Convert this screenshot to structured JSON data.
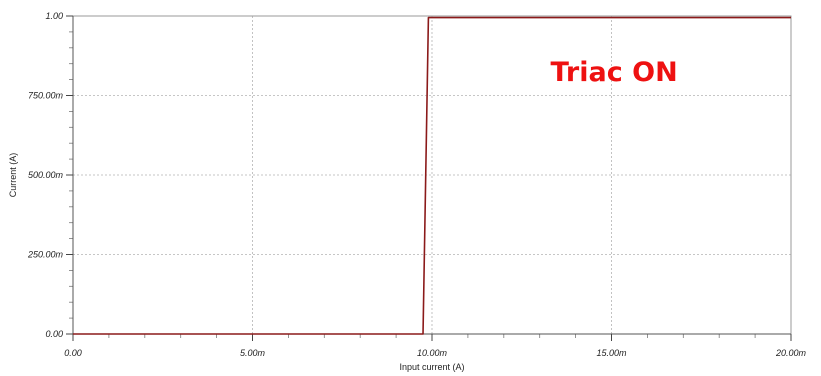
{
  "chart_data": {
    "type": "line",
    "title": "",
    "xlabel": "Input current (A)",
    "ylabel": "Current (A)",
    "xlim": [
      0,
      0.02
    ],
    "ylim": [
      0,
      1.0
    ],
    "x_ticks": [
      {
        "value": 0.0,
        "label": "0.00"
      },
      {
        "value": 0.005,
        "label": "5.00m"
      },
      {
        "value": 0.01,
        "label": "10.00m"
      },
      {
        "value": 0.015,
        "label": "15.00m"
      },
      {
        "value": 0.02,
        "label": "20.00m"
      }
    ],
    "y_ticks": [
      {
        "value": 0.0,
        "label": "0.00"
      },
      {
        "value": 0.25,
        "label": "250.00m"
      },
      {
        "value": 0.5,
        "label": "500.00m"
      },
      {
        "value": 0.75,
        "label": "750.00m"
      },
      {
        "value": 1.0,
        "label": "1.00"
      }
    ],
    "grid": true,
    "series": [
      {
        "color": "#8b1a1a",
        "x": [
          0.0,
          0.00975,
          0.0099,
          0.02
        ],
        "y": [
          0.0,
          0.0,
          0.995,
          0.995
        ]
      }
    ],
    "annotations": [
      {
        "text": "Triac ON",
        "color": "#ee1111",
        "x": 0.0133,
        "y": 0.795
      }
    ]
  }
}
